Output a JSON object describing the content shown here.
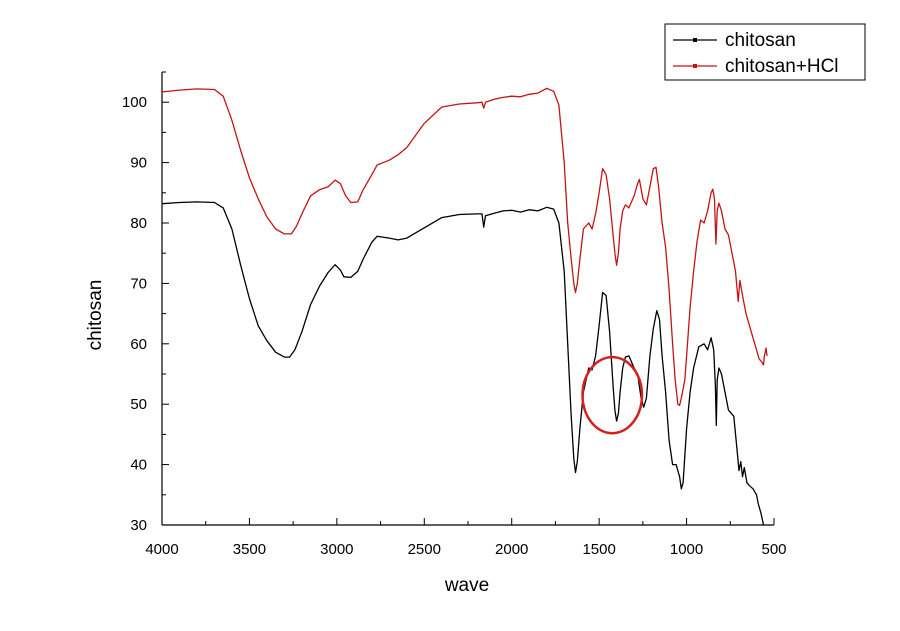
{
  "chart_data": {
    "type": "line",
    "title": "",
    "xlabel": "wave",
    "ylabel": "chitosan",
    "xlim": [
      4000,
      500
    ],
    "ylim": [
      30,
      105
    ],
    "x_reversed": true,
    "x_ticks": [
      4000,
      3500,
      3000,
      2500,
      2000,
      1500,
      1000,
      500
    ],
    "y_ticks": [
      30,
      40,
      50,
      60,
      70,
      80,
      90,
      100
    ],
    "grid": false,
    "legend_position": "top-right",
    "annotation": {
      "type": "ellipse",
      "color": "#d42020",
      "center": [
        1425,
        51.5
      ],
      "rx_units": 170,
      "ry_units": 6.3
    },
    "series": [
      {
        "name": "chitosan",
        "color": "#000000",
        "points": [
          [
            4000,
            83.2
          ],
          [
            3900,
            83.4
          ],
          [
            3800,
            83.5
          ],
          [
            3700,
            83.4
          ],
          [
            3650,
            82.5
          ],
          [
            3600,
            79
          ],
          [
            3550,
            73
          ],
          [
            3500,
            67.5
          ],
          [
            3450,
            63
          ],
          [
            3400,
            60.5
          ],
          [
            3350,
            58.6
          ],
          [
            3300,
            57.8
          ],
          [
            3270,
            57.8
          ],
          [
            3240,
            59
          ],
          [
            3200,
            62
          ],
          [
            3150,
            66.5
          ],
          [
            3100,
            69.5
          ],
          [
            3050,
            71.8
          ],
          [
            3010,
            73.1
          ],
          [
            2980,
            72.2
          ],
          [
            2960,
            71.1
          ],
          [
            2920,
            71
          ],
          [
            2880,
            72
          ],
          [
            2850,
            74
          ],
          [
            2800,
            76.8
          ],
          [
            2770,
            77.8
          ],
          [
            2700,
            77.5
          ],
          [
            2650,
            77.2
          ],
          [
            2600,
            77.5
          ],
          [
            2500,
            79.2
          ],
          [
            2400,
            80.9
          ],
          [
            2300,
            81.4
          ],
          [
            2200,
            81.5
          ],
          [
            2170,
            81.5
          ],
          [
            2160,
            79.3
          ],
          [
            2150,
            81.2
          ],
          [
            2100,
            81.6
          ],
          [
            2050,
            82
          ],
          [
            2000,
            82.1
          ],
          [
            1950,
            81.8
          ],
          [
            1900,
            82.2
          ],
          [
            1850,
            82
          ],
          [
            1800,
            82.6
          ],
          [
            1760,
            82.3
          ],
          [
            1730,
            80
          ],
          [
            1700,
            72
          ],
          [
            1680,
            60
          ],
          [
            1660,
            48
          ],
          [
            1645,
            41
          ],
          [
            1635,
            38.7
          ],
          [
            1625,
            40.5
          ],
          [
            1610,
            46
          ],
          [
            1590,
            52
          ],
          [
            1560,
            56
          ],
          [
            1540,
            55.7
          ],
          [
            1520,
            58
          ],
          [
            1500,
            63
          ],
          [
            1480,
            68.5
          ],
          [
            1460,
            68
          ],
          [
            1440,
            62
          ],
          [
            1420,
            53
          ],
          [
            1410,
            49
          ],
          [
            1400,
            47.2
          ],
          [
            1390,
            48.5
          ],
          [
            1380,
            52
          ],
          [
            1365,
            56
          ],
          [
            1350,
            57.8
          ],
          [
            1330,
            58
          ],
          [
            1300,
            56
          ],
          [
            1280,
            55
          ],
          [
            1260,
            51
          ],
          [
            1245,
            49.5
          ],
          [
            1230,
            51
          ],
          [
            1210,
            58
          ],
          [
            1190,
            62.5
          ],
          [
            1170,
            65.5
          ],
          [
            1155,
            64
          ],
          [
            1140,
            58
          ],
          [
            1120,
            52
          ],
          [
            1100,
            44
          ],
          [
            1080,
            40
          ],
          [
            1060,
            40
          ],
          [
            1040,
            38
          ],
          [
            1030,
            36
          ],
          [
            1020,
            37
          ],
          [
            1000,
            46
          ],
          [
            980,
            52
          ],
          [
            960,
            56
          ],
          [
            930,
            59.5
          ],
          [
            900,
            60
          ],
          [
            880,
            59
          ],
          [
            860,
            61
          ],
          [
            845,
            59
          ],
          [
            835,
            53
          ],
          [
            830,
            46.5
          ],
          [
            825,
            54
          ],
          [
            815,
            56
          ],
          [
            800,
            55
          ],
          [
            780,
            52
          ],
          [
            760,
            49
          ],
          [
            730,
            48
          ],
          [
            710,
            42
          ],
          [
            700,
            39
          ],
          [
            690,
            40.5
          ],
          [
            680,
            38
          ],
          [
            670,
            39.5
          ],
          [
            655,
            37
          ],
          [
            640,
            36.5
          ],
          [
            620,
            36
          ],
          [
            600,
            35
          ],
          [
            590,
            33.5
          ],
          [
            575,
            32
          ],
          [
            560,
            30
          ]
        ]
      },
      {
        "name": "chitosan+HCl",
        "color": "#c41414",
        "points": [
          [
            4000,
            101.7
          ],
          [
            3900,
            102
          ],
          [
            3800,
            102.2
          ],
          [
            3700,
            102.1
          ],
          [
            3650,
            101
          ],
          [
            3600,
            97
          ],
          [
            3550,
            92
          ],
          [
            3500,
            87.5
          ],
          [
            3450,
            84
          ],
          [
            3400,
            81
          ],
          [
            3350,
            79
          ],
          [
            3300,
            78.2
          ],
          [
            3260,
            78.2
          ],
          [
            3230,
            79.5
          ],
          [
            3200,
            81.5
          ],
          [
            3150,
            84.5
          ],
          [
            3100,
            85.5
          ],
          [
            3050,
            86
          ],
          [
            3010,
            87.1
          ],
          [
            2980,
            86.5
          ],
          [
            2950,
            84.5
          ],
          [
            2920,
            83.4
          ],
          [
            2880,
            83.5
          ],
          [
            2850,
            85.5
          ],
          [
            2800,
            88
          ],
          [
            2770,
            89.6
          ],
          [
            2700,
            90.4
          ],
          [
            2650,
            91.3
          ],
          [
            2600,
            92.5
          ],
          [
            2500,
            96.5
          ],
          [
            2400,
            99.2
          ],
          [
            2300,
            99.7
          ],
          [
            2200,
            99.9
          ],
          [
            2170,
            100
          ],
          [
            2160,
            99
          ],
          [
            2150,
            100
          ],
          [
            2100,
            100.5
          ],
          [
            2050,
            100.8
          ],
          [
            2000,
            101
          ],
          [
            1950,
            100.9
          ],
          [
            1900,
            101.3
          ],
          [
            1850,
            101.5
          ],
          [
            1800,
            102.3
          ],
          [
            1760,
            101.8
          ],
          [
            1730,
            99.5
          ],
          [
            1700,
            90
          ],
          [
            1680,
            80
          ],
          [
            1660,
            74
          ],
          [
            1645,
            70
          ],
          [
            1635,
            68.5
          ],
          [
            1625,
            70
          ],
          [
            1610,
            74
          ],
          [
            1590,
            79
          ],
          [
            1560,
            80
          ],
          [
            1540,
            79
          ],
          [
            1520,
            81.5
          ],
          [
            1500,
            85
          ],
          [
            1480,
            89
          ],
          [
            1460,
            88
          ],
          [
            1440,
            84
          ],
          [
            1420,
            78
          ],
          [
            1410,
            75
          ],
          [
            1400,
            73
          ],
          [
            1390,
            75
          ],
          [
            1380,
            79
          ],
          [
            1365,
            82
          ],
          [
            1350,
            83
          ],
          [
            1330,
            82.5
          ],
          [
            1300,
            84.5
          ],
          [
            1280,
            86.5
          ],
          [
            1270,
            87.2
          ],
          [
            1250,
            84
          ],
          [
            1230,
            83
          ],
          [
            1210,
            86
          ],
          [
            1190,
            89
          ],
          [
            1175,
            89.2
          ],
          [
            1160,
            86
          ],
          [
            1140,
            80
          ],
          [
            1120,
            76
          ],
          [
            1100,
            69
          ],
          [
            1080,
            60
          ],
          [
            1065,
            54
          ],
          [
            1050,
            50
          ],
          [
            1040,
            49.8
          ],
          [
            1030,
            51
          ],
          [
            1010,
            54
          ],
          [
            1000,
            58
          ],
          [
            980,
            66
          ],
          [
            960,
            72
          ],
          [
            940,
            77
          ],
          [
            920,
            80.5
          ],
          [
            900,
            80
          ],
          [
            880,
            82
          ],
          [
            860,
            85
          ],
          [
            850,
            85.6
          ],
          [
            840,
            84
          ],
          [
            832,
            76.5
          ],
          [
            825,
            82
          ],
          [
            815,
            83.3
          ],
          [
            800,
            82
          ],
          [
            780,
            79
          ],
          [
            760,
            78
          ],
          [
            740,
            75
          ],
          [
            720,
            72
          ],
          [
            705,
            67
          ],
          [
            695,
            70.5
          ],
          [
            680,
            68
          ],
          [
            660,
            65
          ],
          [
            640,
            63
          ],
          [
            620,
            61
          ],
          [
            600,
            59
          ],
          [
            585,
            57.5
          ],
          [
            570,
            57
          ],
          [
            560,
            56.5
          ],
          [
            555,
            58
          ],
          [
            545,
            59.3
          ],
          [
            540,
            58
          ]
        ]
      }
    ]
  },
  "legend": {
    "items": [
      {
        "label": "chitosan",
        "color": "#000000"
      },
      {
        "label": "chitosan+HCl",
        "color": "#c41414"
      }
    ]
  }
}
